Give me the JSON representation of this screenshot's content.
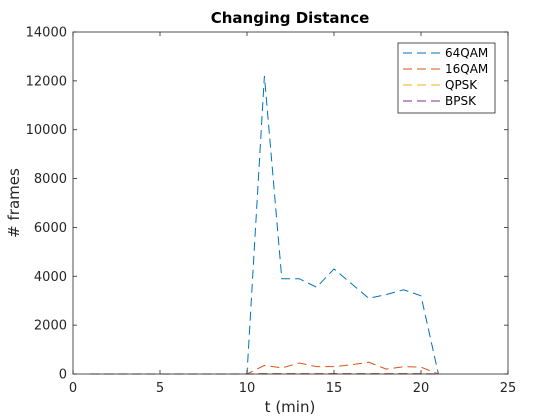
{
  "chart_data": {
    "type": "line",
    "title": "Changing Distance",
    "xlabel": "t (min)",
    "ylabel": "# frames",
    "xlim": [
      0,
      25
    ],
    "ylim": [
      0,
      14000
    ],
    "xticks": [
      0,
      5,
      10,
      15,
      20,
      25
    ],
    "yticks": [
      0,
      2000,
      4000,
      6000,
      8000,
      10000,
      12000,
      14000
    ],
    "grid": false,
    "legend_position": "top-right",
    "x": [
      1,
      2,
      3,
      4,
      5,
      6,
      7,
      8,
      9,
      10,
      11,
      12,
      13,
      14,
      15,
      16,
      17,
      18,
      19,
      20,
      21
    ],
    "series": [
      {
        "name": "64QAM",
        "color": "#0072BD",
        "values": [
          0,
          0,
          0,
          0,
          0,
          0,
          0,
          0,
          0,
          0,
          12200,
          3900,
          3900,
          3550,
          4300,
          3700,
          3100,
          3250,
          3450,
          3200,
          0
        ]
      },
      {
        "name": "16QAM",
        "color": "#D95319",
        "values": [
          0,
          0,
          0,
          0,
          0,
          0,
          0,
          0,
          0,
          0,
          350,
          250,
          450,
          300,
          300,
          380,
          480,
          200,
          300,
          280,
          0
        ]
      },
      {
        "name": "QPSK",
        "color": "#EDB120",
        "values": [
          0,
          0,
          0,
          0,
          0,
          0,
          0,
          0,
          0,
          0,
          20,
          15,
          20,
          15,
          20,
          15,
          20,
          15,
          20,
          15,
          0
        ]
      },
      {
        "name": "BPSK",
        "color": "#7E2F8E",
        "values": [
          0,
          0,
          0,
          0,
          0,
          0,
          0,
          0,
          0,
          0,
          5,
          5,
          5,
          5,
          5,
          5,
          5,
          5,
          5,
          5,
          0
        ]
      }
    ]
  }
}
